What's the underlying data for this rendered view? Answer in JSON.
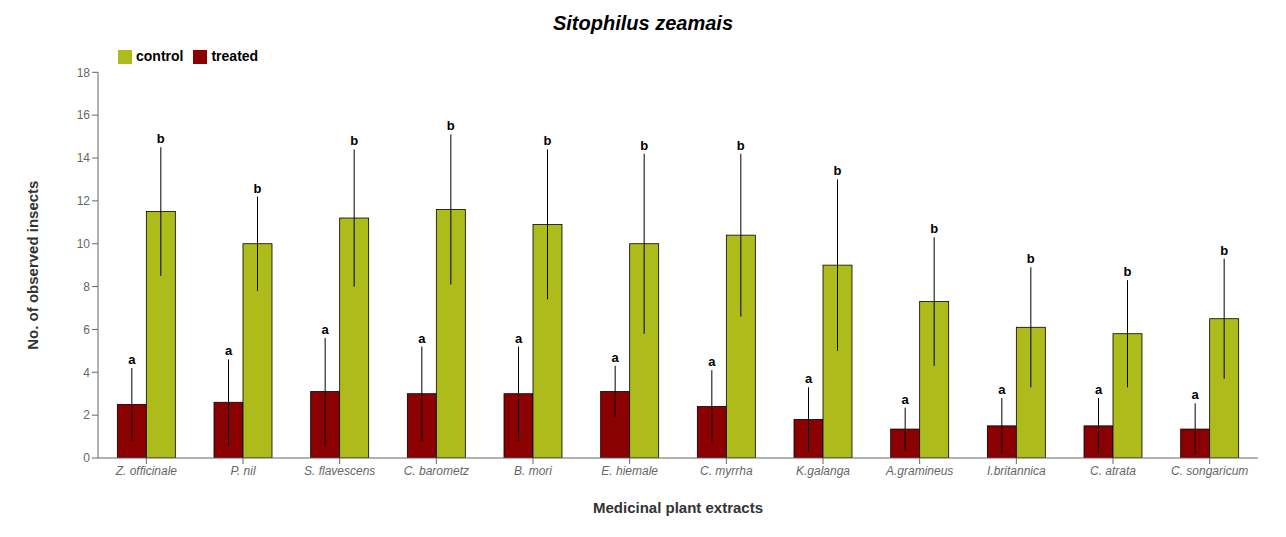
{
  "chart_data": {
    "type": "bar",
    "title": "Sitophilus zeamais",
    "xlabel": "Medicinal plant extracts",
    "ylabel": "No. of observed insects",
    "categories": [
      "Z. officinale",
      "P. nil",
      "S. flavescens",
      "C. barometz",
      "B. mori",
      "E. hiemale",
      "C. myrrha",
      "K.galanga",
      "A.gramineus",
      "I.britannica",
      "C. atrata",
      "C. songaricum"
    ],
    "series": [
      {
        "name": "treated",
        "color": "#8B0000",
        "values": [
          2.5,
          2.6,
          3.1,
          3.0,
          3.0,
          3.1,
          2.4,
          1.8,
          1.35,
          1.5,
          1.5,
          1.35
        ],
        "error": [
          1.7,
          2.0,
          2.5,
          2.2,
          2.2,
          1.2,
          1.7,
          1.5,
          1.0,
          1.3,
          1.3,
          1.2
        ],
        "annotation": "a"
      },
      {
        "name": "control",
        "color": "#ADBC1A",
        "values": [
          11.5,
          10.0,
          11.2,
          11.6,
          10.9,
          10.0,
          10.4,
          9.0,
          7.3,
          6.1,
          5.8,
          6.5
        ],
        "error": [
          3.0,
          2.2,
          3.2,
          3.5,
          3.5,
          4.2,
          3.8,
          4.0,
          3.0,
          2.8,
          2.5,
          2.8
        ],
        "annotation": "b"
      }
    ],
    "ylim": [
      0,
      18
    ],
    "yticks": [
      0,
      2,
      4,
      6,
      8,
      10,
      12,
      14,
      16,
      18
    ],
    "grid": false,
    "legend": "upper left"
  }
}
